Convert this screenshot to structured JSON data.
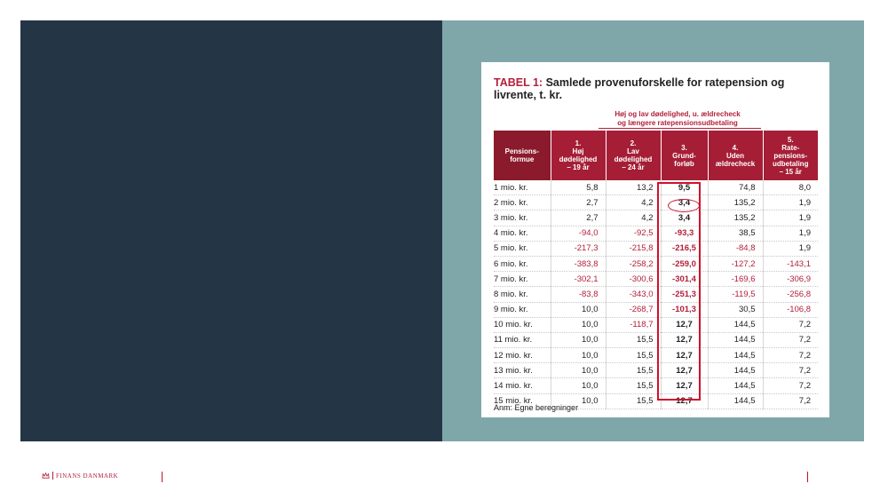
{
  "table": {
    "label": "TABEL 1:",
    "title": "Samlede provenuforskelle for ratepension og livrente, t. kr.",
    "subheading_line1": "Høj og lav dødelighed, u. ældrecheck",
    "subheading_line2": "og længere ratepensionsudbetaling",
    "columns": [
      {
        "l1": "Pensions-",
        "l2": "formue",
        "l3": "",
        "l4": "",
        "l5": ""
      },
      {
        "l1": "1.",
        "l2": "Høj",
        "l3": "dødelighed",
        "l4": "– 19 år",
        "l5": ""
      },
      {
        "l1": "2.",
        "l2": "Lav",
        "l3": "dødelighed",
        "l4": "– 24 år",
        "l5": ""
      },
      {
        "l1": "3.",
        "l2": "Grund-",
        "l3": "forløb",
        "l4": "",
        "l5": ""
      },
      {
        "l1": "4.",
        "l2": "Uden",
        "l3": "ældrecheck",
        "l4": "",
        "l5": ""
      },
      {
        "l1": "5.",
        "l2": "Rate-",
        "l3": "pensions-",
        "l4": "udbetaling",
        "l5": "– 15 år"
      }
    ],
    "rows": [
      [
        "1 mio. kr.",
        "5,8",
        "13,2",
        "9,5",
        "74,8",
        "8,0"
      ],
      [
        "2 mio. kr.",
        "2,7",
        "4,2",
        "3,4",
        "135,2",
        "1,9"
      ],
      [
        "3 mio. kr.",
        "2,7",
        "4,2",
        "3,4",
        "135,2",
        "1,9"
      ],
      [
        "4 mio. kr.",
        "-94,0",
        "-92,5",
        "-93,3",
        "38,5",
        "1,9"
      ],
      [
        "5 mio. kr.",
        "-217,3",
        "-215,8",
        "-216,5",
        "-84,8",
        "1,9"
      ],
      [
        "6 mio. kr.",
        "-383,8",
        "-258,2",
        "-259,0",
        "-127,2",
        "-143,1"
      ],
      [
        "7 mio. kr.",
        "-302,1",
        "-300,6",
        "-301,4",
        "-169,6",
        "-306,9"
      ],
      [
        "8 mio. kr.",
        "-83,8",
        "-343,0",
        "-251,3",
        "-119,5",
        "-256,8"
      ],
      [
        "9 mio. kr.",
        "10,0",
        "-268,7",
        "-101,3",
        "30,5",
        "-106,8"
      ],
      [
        "10 mio. kr.",
        "10,0",
        "-118,7",
        "12,7",
        "144,5",
        "7,2"
      ],
      [
        "11 mio. kr.",
        "10,0",
        "15,5",
        "12,7",
        "144,5",
        "7,2"
      ],
      [
        "12 mio. kr.",
        "10,0",
        "15,5",
        "12,7",
        "144,5",
        "7,2"
      ],
      [
        "13 mio. kr.",
        "10,0",
        "15,5",
        "12,7",
        "144,5",
        "7,2"
      ],
      [
        "14 mio. kr.",
        "10,0",
        "15,5",
        "12,7",
        "144,5",
        "7,2"
      ],
      [
        "15 mio. kr.",
        "10,0",
        "15,5",
        "12,7",
        "144,5",
        "7,2"
      ]
    ],
    "note": "Anm: Egne beregninger"
  },
  "footer": {
    "logo_text": "FINANS DANMARK",
    "logo_icon": "finans-danmark-crown-icon"
  },
  "colors": {
    "dark_panel": "#243545",
    "teal_panel": "#7fa7aa",
    "header_red": "#a51e36",
    "header_dark_red": "#8b1a2c",
    "negative_red": "#b3203a",
    "highlight_red": "#d0102c"
  }
}
